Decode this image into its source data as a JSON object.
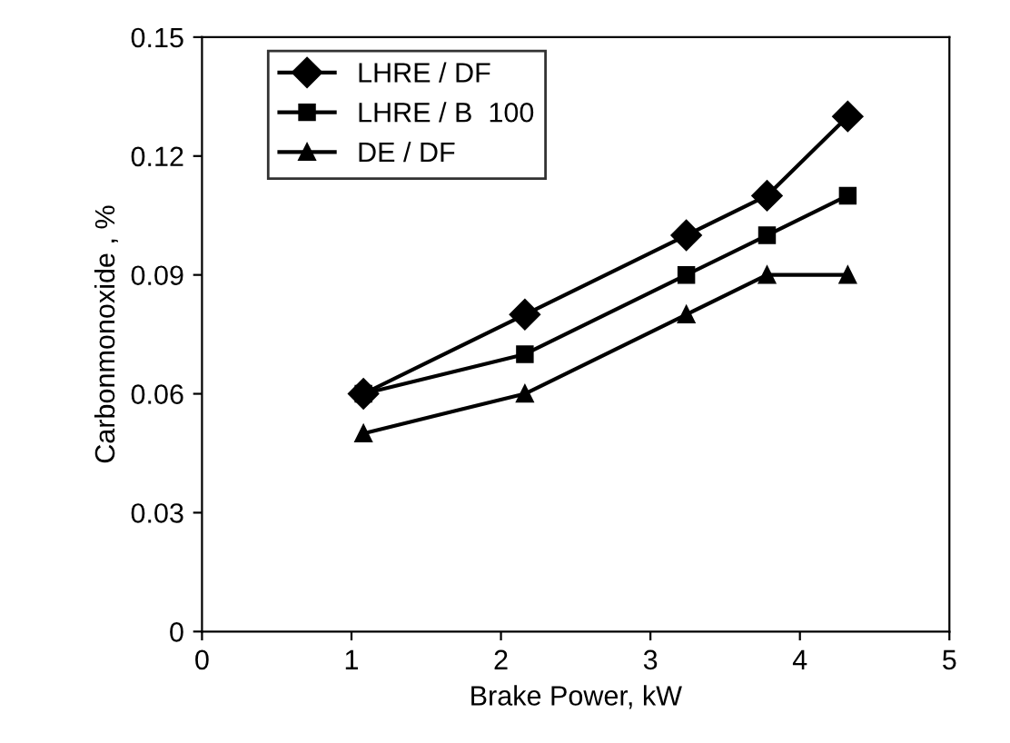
{
  "chart_data": {
    "type": "line",
    "xlabel": "Brake Power, kW",
    "ylabel": "Carbonmonoxide , %",
    "x": [
      1.08,
      2.16,
      3.24,
      3.78,
      4.32
    ],
    "series": [
      {
        "name": "LHRE / DF",
        "color": "#000000",
        "marker": "diamond",
        "values": [
          0.06,
          0.08,
          0.1,
          0.11,
          0.13
        ]
      },
      {
        "name": "LHRE / B  100",
        "color": "#000000",
        "marker": "square",
        "values": [
          0.06,
          0.07,
          0.09,
          0.1,
          0.11
        ]
      },
      {
        "name": "DE / DF",
        "color": "#000000",
        "marker": "triangle",
        "values": [
          0.05,
          0.06,
          0.08,
          0.09,
          0.09
        ]
      }
    ],
    "xlim": [
      0,
      5
    ],
    "xticks": [
      0,
      1,
      2,
      3,
      4,
      5
    ],
    "ylim": [
      0,
      0.15
    ],
    "yticks": [
      {
        "value": 0,
        "label": "0"
      },
      {
        "value": 0.03,
        "label": "0.03"
      },
      {
        "value": 0.06,
        "label": "0.06"
      },
      {
        "value": 0.09,
        "label": "0.09"
      },
      {
        "value": 0.12,
        "label": "0.12"
      },
      {
        "value": 0.15,
        "label": "0.15"
      }
    ],
    "grid": false,
    "legend": "top left",
    "line_style": "solid"
  }
}
